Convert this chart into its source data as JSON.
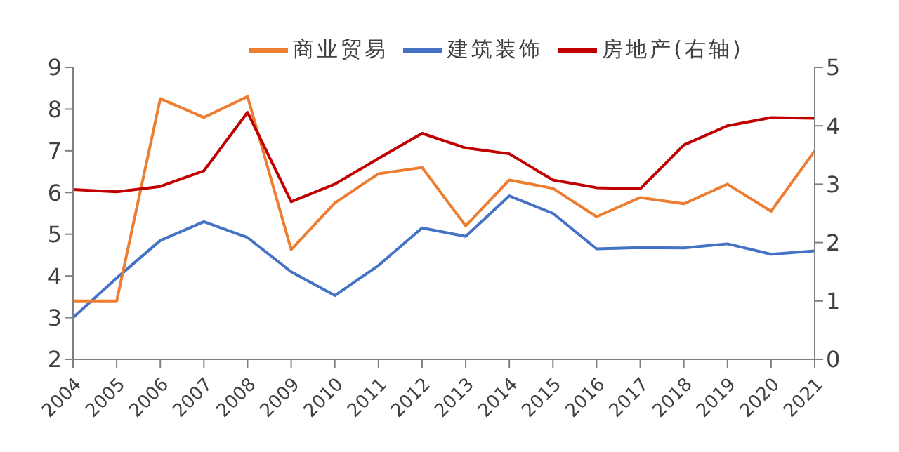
{
  "chart_data": {
    "type": "line",
    "categories": [
      "2004",
      "2005",
      "2006",
      "2007",
      "2008",
      "2009",
      "2010",
      "2011",
      "2012",
      "2013",
      "2014",
      "2015",
      "2016",
      "2017",
      "2018",
      "2019",
      "2020",
      "2021"
    ],
    "series": [
      {
        "name": "建筑装饰",
        "color": "#4472c4",
        "values": [
          3.0,
          3.95,
          4.85,
          5.3,
          4.92,
          4.1,
          3.53,
          4.25,
          5.15,
          4.95,
          5.92,
          5.5,
          4.65,
          4.68,
          4.67,
          4.77,
          4.52,
          4.6
        ]
      },
      {
        "name": "商业贸易",
        "color": "#ed7d31",
        "values": [
          3.4,
          3.4,
          8.25,
          7.8,
          8.3,
          4.63,
          5.75,
          6.45,
          6.6,
          5.2,
          6.3,
          6.1,
          5.42,
          5.88,
          5.73,
          6.2,
          5.55,
          7.0
        ]
      },
      {
        "name": "房地产(右轴)",
        "color": "#c00000",
        "axis": "y2",
        "values": [
          2.91,
          2.87,
          2.96,
          3.23,
          4.23,
          2.7,
          3.0,
          3.44,
          3.87,
          3.62,
          3.52,
          3.07,
          2.94,
          2.92,
          3.67,
          4.0,
          4.14,
          4.13
        ]
      }
    ],
    "ylim": [
      2,
      9
    ],
    "yticks": [
      2,
      3,
      4,
      5,
      6,
      7,
      8,
      9
    ],
    "y2lim": [
      0,
      5
    ],
    "y2ticks": [
      0,
      1,
      2,
      3,
      4,
      5
    ],
    "grid": false,
    "legend": "top",
    "marker": "none",
    "line_style": "solid"
  }
}
